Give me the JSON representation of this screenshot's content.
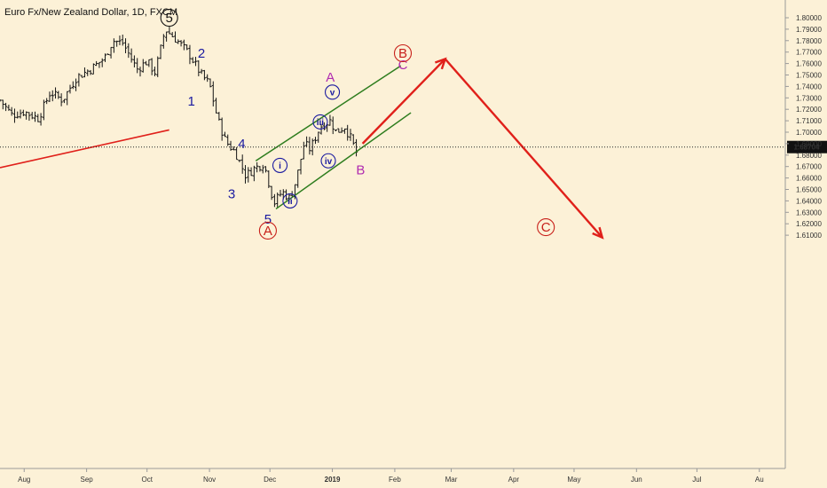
{
  "chart_data": {
    "type": "ohlc-bar",
    "title": "Euro Fx/New Zealand Dollar, 1D, FXCM",
    "x_tick_labels": [
      "Aug",
      "Sep",
      "Oct",
      "Nov",
      "Dec",
      "2019",
      "Feb",
      "Mar",
      "Apr",
      "May",
      "Jun",
      "Jul",
      "Au"
    ],
    "y_tick_labels": [
      "1.80000",
      "1.79000",
      "1.78000",
      "1.77000",
      "1.76000",
      "1.75000",
      "1.74000",
      "1.73000",
      "1.72000",
      "1.71000",
      "1.70000",
      "1.69000",
      "1.68000",
      "1.67000",
      "1.66000",
      "1.65000",
      "1.64000",
      "1.63000",
      "1.62000",
      "1.61000"
    ],
    "ylim": [
      1.605,
      1.805
    ],
    "current_price": {
      "value": 1.68704,
      "label": "1.68704"
    },
    "price_path": [
      [
        "2018-07-20",
        1.728
      ],
      [
        "2018-07-26",
        1.715
      ],
      [
        "2018-08-01",
        1.718
      ],
      [
        "2018-08-08",
        1.712
      ],
      [
        "2018-08-14",
        1.735
      ],
      [
        "2018-08-20",
        1.728
      ],
      [
        "2018-08-27",
        1.748
      ],
      [
        "2018-09-03",
        1.755
      ],
      [
        "2018-09-10",
        1.765
      ],
      [
        "2018-09-14",
        1.78
      ],
      [
        "2018-09-19",
        1.778
      ],
      [
        "2018-09-26",
        1.755
      ],
      [
        "2018-10-01",
        1.762
      ],
      [
        "2018-10-05",
        1.752
      ],
      [
        "2018-10-10",
        1.79
      ],
      [
        "2018-10-16",
        1.78
      ],
      [
        "2018-10-22",
        1.768
      ],
      [
        "2018-10-28",
        1.75
      ],
      [
        "2018-11-01",
        1.742
      ],
      [
        "2018-11-05",
        1.712
      ],
      [
        "2018-11-09",
        1.692
      ],
      [
        "2018-11-14",
        1.682
      ],
      [
        "2018-11-19",
        1.662
      ],
      [
        "2018-11-23",
        1.668
      ],
      [
        "2018-11-28",
        1.673
      ],
      [
        "2018-12-03",
        1.638
      ],
      [
        "2018-12-07",
        1.648
      ],
      [
        "2018-12-11",
        1.642
      ],
      [
        "2018-12-14",
        1.658
      ],
      [
        "2018-12-18",
        1.69
      ],
      [
        "2018-12-21",
        1.685
      ],
      [
        "2018-12-26",
        1.705
      ],
      [
        "2018-12-31",
        1.71
      ],
      [
        "2019-01-03",
        1.7
      ],
      [
        "2019-01-07",
        1.705
      ],
      [
        "2019-01-10",
        1.695
      ],
      [
        "2019-01-14",
        1.678
      ]
    ],
    "channel": {
      "color": "#2e7d1e",
      "upper": [
        [
          "2018-11-24",
          1.675
        ],
        [
          "2019-02-04",
          1.758
        ]
      ],
      "lower": [
        [
          "2018-12-04",
          1.633
        ],
        [
          "2019-02-09",
          1.717
        ]
      ]
    },
    "trend_line": {
      "color": "#e0201a",
      "points": [
        [
          "2018-07-20",
          1.669
        ],
        [
          "2018-10-12",
          1.702
        ]
      ]
    },
    "projection": {
      "color": "#e0201a",
      "points": [
        [
          "2019-01-16",
          1.69
        ],
        [
          "2019-02-26",
          1.764
        ],
        [
          "2019-05-15",
          1.608
        ]
      ]
    },
    "wave_labels": [
      {
        "text": "5",
        "date": "2018-10-12",
        "price": 1.8,
        "color": "#111111",
        "circled": true
      },
      {
        "text": "2",
        "date": "2018-10-28",
        "price": 1.769,
        "color": "#1a1aa0",
        "circled": false
      },
      {
        "text": "1",
        "date": "2018-10-23",
        "price": 1.727,
        "color": "#1a1aa0",
        "circled": false
      },
      {
        "text": "4",
        "date": "2018-11-17",
        "price": 1.69,
        "color": "#1a1aa0",
        "circled": false
      },
      {
        "text": "3",
        "date": "2018-11-12",
        "price": 1.646,
        "color": "#1a1aa0",
        "circled": false
      },
      {
        "text": "5",
        "date": "2018-11-30",
        "price": 1.624,
        "color": "#1a1aa0",
        "circled": false
      },
      {
        "text": "A",
        "date": "2018-11-30",
        "price": 1.614,
        "color": "#c8201a",
        "circled": true
      },
      {
        "text": "i",
        "date": "2018-12-06",
        "price": 1.671,
        "color": "#1a1aa0",
        "circled": true,
        "small": true
      },
      {
        "text": "ii",
        "date": "2018-12-11",
        "price": 1.64,
        "color": "#1a1aa0",
        "circled": true,
        "small": true
      },
      {
        "text": "iii",
        "date": "2018-12-26",
        "price": 1.709,
        "color": "#1a1aa0",
        "circled": true,
        "small": true
      },
      {
        "text": "iv",
        "date": "2018-12-30",
        "price": 1.675,
        "color": "#1a1aa0",
        "circled": true,
        "small": true
      },
      {
        "text": "v",
        "date": "2019-01-01",
        "price": 1.735,
        "color": "#1a1aa0",
        "circled": true,
        "small": true
      },
      {
        "text": "A",
        "date": "2018-12-31",
        "price": 1.748,
        "color": "#b02cb0",
        "circled": false
      },
      {
        "text": "B",
        "date": "2019-01-15",
        "price": 1.667,
        "color": "#b02cb0",
        "circled": false
      },
      {
        "text": "C",
        "date": "2019-02-05",
        "price": 1.759,
        "color": "#b02cb0",
        "circled": false
      },
      {
        "text": "B",
        "date": "2019-02-05",
        "price": 1.769,
        "color": "#c8201a",
        "circled": true
      },
      {
        "text": "C",
        "date": "2019-04-17",
        "price": 1.617,
        "color": "#c8201a",
        "circled": true
      }
    ]
  }
}
